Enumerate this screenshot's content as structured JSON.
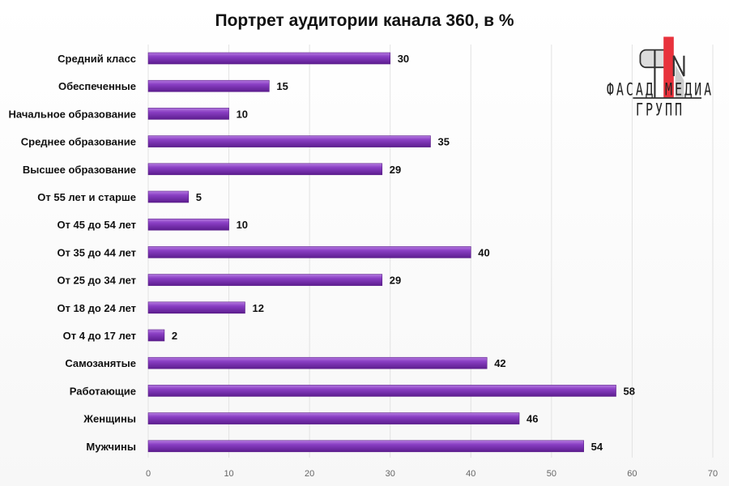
{
  "chart_data": {
    "type": "bar",
    "orientation": "horizontal",
    "title": "Портрет аудитории канала 360, в %",
    "categories": [
      "Средний класс",
      "Обеспеченные",
      "Начальное образование",
      "Среднее образование",
      "Высшее образование",
      "От 55 лет и старше",
      "От 45 до 54 лет",
      "От 35 до 44 лет",
      "От 25 до 34 лет",
      "От 18 до 24 лет",
      "От 4 до 17 лет",
      "Самозанятые",
      "Работающие",
      "Женщины",
      "Мужчины"
    ],
    "values": [
      30,
      15,
      10,
      35,
      29,
      5,
      10,
      40,
      29,
      12,
      2,
      42,
      58,
      46,
      54
    ],
    "xlim": [
      0,
      70
    ],
    "xticks": [
      0,
      10,
      20,
      30,
      40,
      50,
      60,
      70
    ],
    "grid": true,
    "bar_color": "#7b2fb5",
    "xlabel": "",
    "ylabel": ""
  },
  "logo": {
    "text": "ФАСАД МЕДИА ГРУПП",
    "accent": "#e8323c"
  }
}
